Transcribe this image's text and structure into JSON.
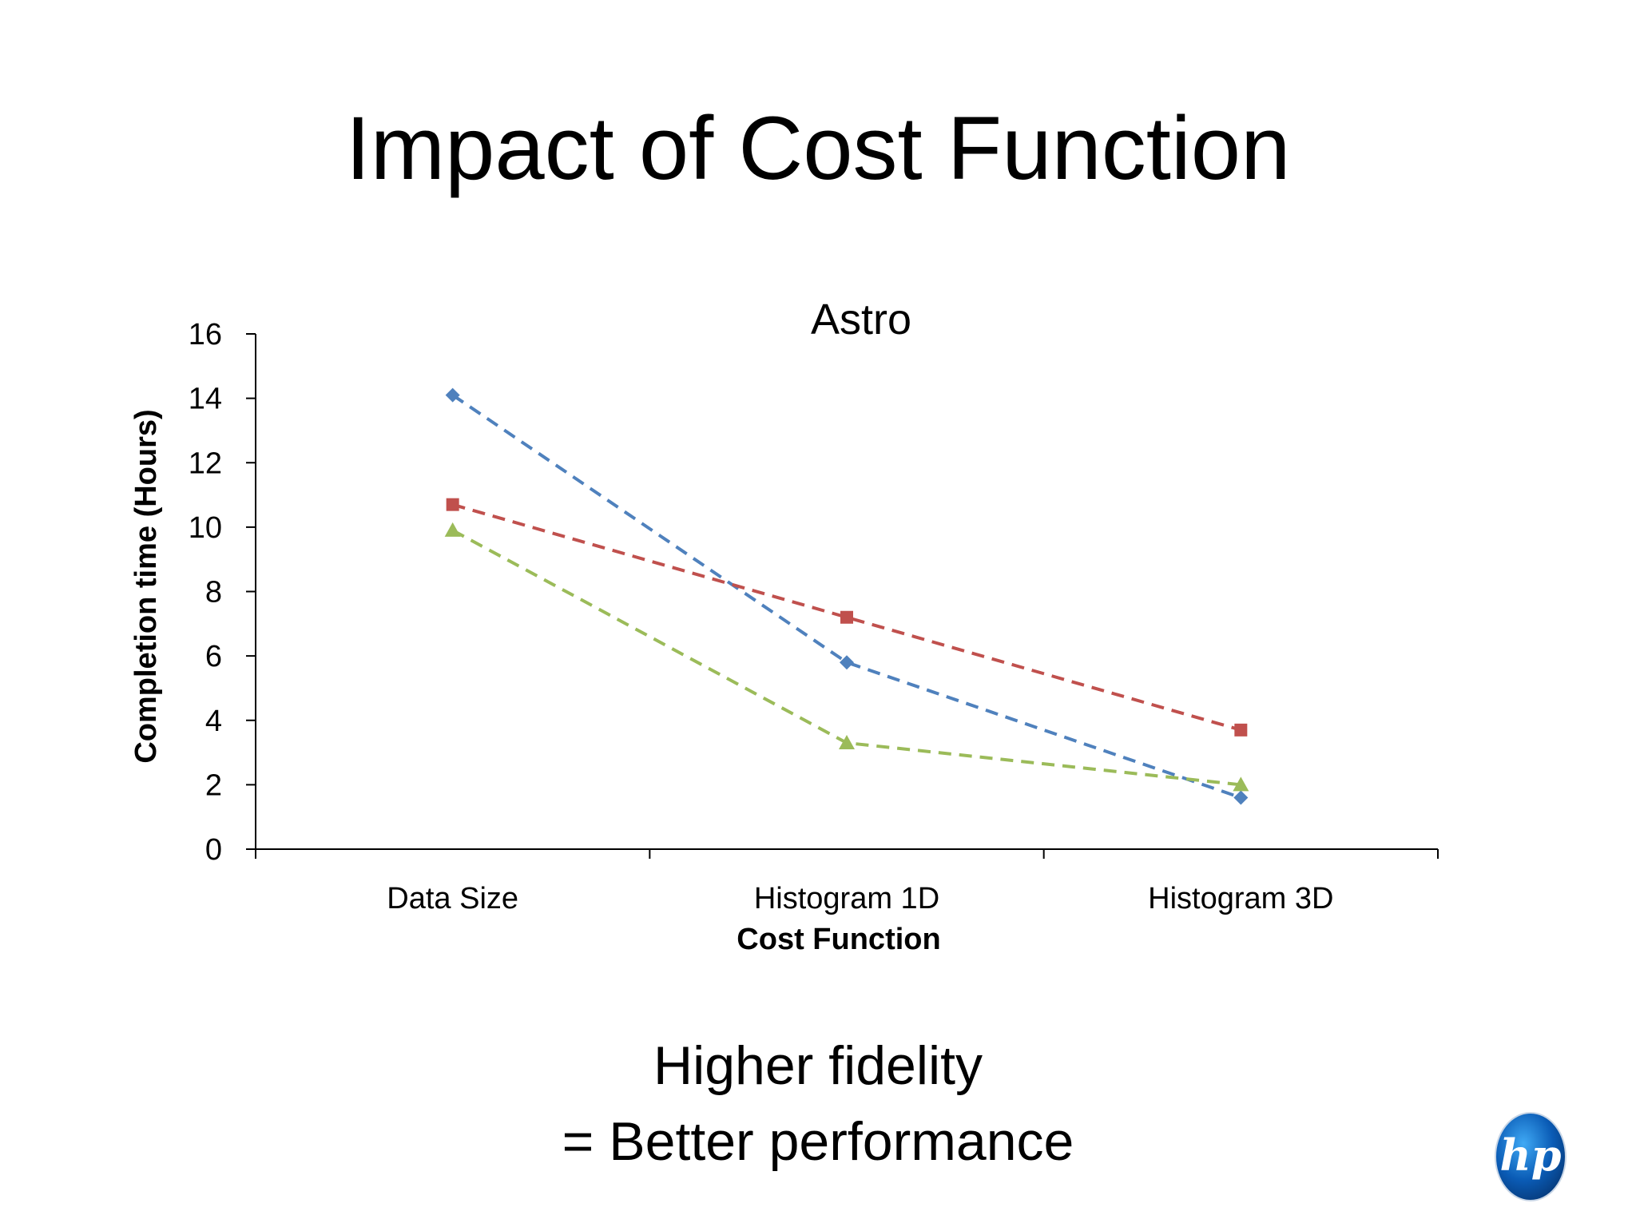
{
  "slide": {
    "title": "Impact of Cost Function",
    "caption_line1": "Higher fidelity",
    "caption_line2": "= Better performance",
    "logo_text": "hp"
  },
  "chart_data": {
    "type": "line",
    "title": "Astro",
    "xlabel": "Cost Function",
    "ylabel": "Completion time (Hours)",
    "categories": [
      "Data Size",
      "Histogram 1D",
      "Histogram 3D"
    ],
    "ylim": [
      0,
      16
    ],
    "yticks": [
      0,
      2,
      4,
      6,
      8,
      10,
      12,
      14,
      16
    ],
    "grid": false,
    "legend": "none",
    "series": [
      {
        "values": [
          14.1,
          5.8,
          1.6
        ],
        "color": "#4f81bd",
        "marker": "diamond",
        "line_style": "dashed"
      },
      {
        "values": [
          10.7,
          7.2,
          3.7
        ],
        "color": "#c0504d",
        "marker": "square",
        "line_style": "dashed"
      },
      {
        "values": [
          9.9,
          3.3,
          2.0
        ],
        "color": "#9bbb59",
        "marker": "triangle",
        "line_style": "dashed"
      }
    ]
  },
  "colors": {
    "background": "#ffffff",
    "text": "#000000",
    "axis": "#000000"
  }
}
